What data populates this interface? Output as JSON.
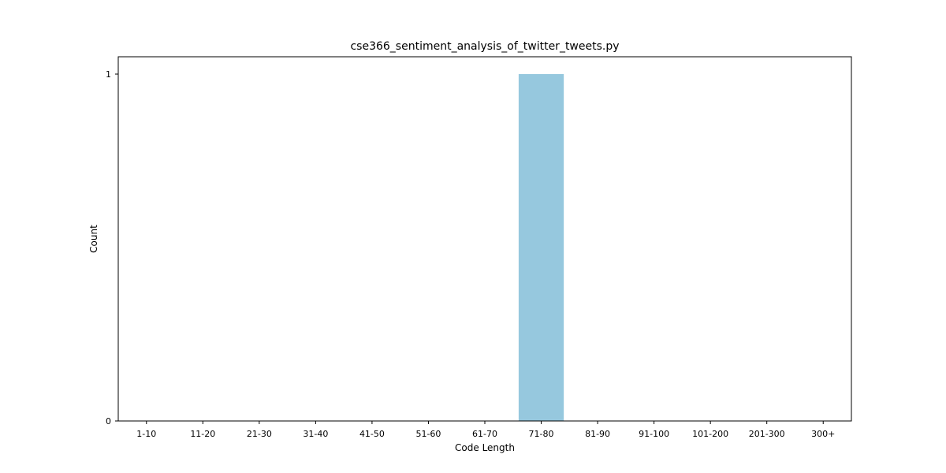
{
  "chart_data": {
    "type": "bar",
    "title": "cse366_sentiment_analysis_of_twitter_tweets.py",
    "xlabel": "Code Length",
    "ylabel": "Count",
    "categories": [
      "1-10",
      "11-20",
      "21-30",
      "31-40",
      "41-50",
      "51-60",
      "61-70",
      "71-80",
      "81-90",
      "91-100",
      "101-200",
      "201-300",
      "300+"
    ],
    "values": [
      0,
      0,
      0,
      0,
      0,
      0,
      0,
      1,
      0,
      0,
      0,
      0,
      0
    ],
    "yticks": [
      "0",
      "1"
    ],
    "ylim": [
      0,
      1.05
    ],
    "grid": false,
    "colors": {
      "bar": "#96c8de",
      "axis": "#000000"
    }
  }
}
